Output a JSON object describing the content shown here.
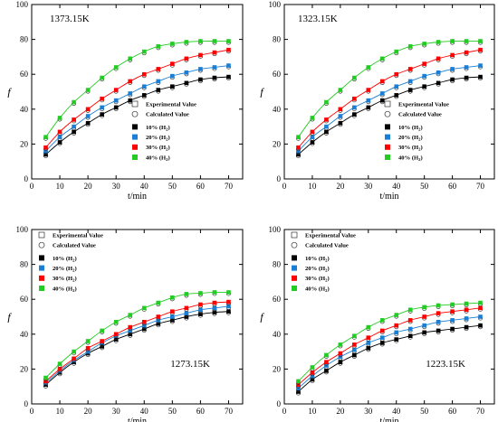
{
  "figure_title": "",
  "chart_data": [
    {
      "type": "scatter",
      "temperature_label": "1373.15K",
      "xlabel": "t/min",
      "ylabel": "f",
      "xlim": [
        0,
        75
      ],
      "ylim": [
        0,
        100
      ],
      "xticks": [
        0,
        10,
        20,
        30,
        40,
        50,
        60,
        70
      ],
      "yticks": [
        0,
        20,
        40,
        60,
        80,
        100
      ],
      "legend_position": "lower-right",
      "legend_marker_entries": [
        "Experimental Value",
        "Calculated Value"
      ],
      "x": [
        5,
        10,
        15,
        20,
        25,
        30,
        35,
        40,
        45,
        50,
        55,
        60,
        65,
        70
      ],
      "series": [
        {
          "name": "10% (H2)",
          "color": "#000000",
          "values": [
            14,
            21,
            27,
            32,
            37,
            41,
            45,
            48,
            51,
            53,
            55,
            57,
            58,
            58.5
          ]
        },
        {
          "name": "20% (H2)",
          "color": "#1a7fd4",
          "values": [
            16,
            24,
            30,
            36,
            41,
            45,
            49,
            53,
            56,
            59,
            61,
            63,
            64,
            65
          ]
        },
        {
          "name": "30% (H2)",
          "color": "#ff0000",
          "values": [
            18,
            27,
            34,
            40,
            46,
            51,
            56,
            60,
            63,
            66,
            69,
            71,
            72.5,
            74
          ]
        },
        {
          "name": "40% (H2)",
          "color": "#22cc22",
          "values": [
            24,
            35,
            44,
            51,
            58,
            64,
            69,
            73,
            76,
            77.5,
            78.5,
            79,
            79,
            79
          ]
        }
      ]
    },
    {
      "type": "scatter",
      "temperature_label": "1323.15K",
      "xlabel": "t/min",
      "ylabel": "f",
      "xlim": [
        0,
        75
      ],
      "ylim": [
        0,
        100
      ],
      "xticks": [
        0,
        10,
        20,
        30,
        40,
        50,
        60,
        70
      ],
      "yticks": [
        0,
        20,
        40,
        60,
        80,
        100
      ],
      "legend_position": "lower-right",
      "legend_marker_entries": [
        "Experimental Value",
        "Calculated Value"
      ],
      "x": [
        5,
        10,
        15,
        20,
        25,
        30,
        35,
        40,
        45,
        50,
        55,
        60,
        65,
        70
      ],
      "series": [
        {
          "name": "10% (H2)",
          "color": "#000000",
          "values": [
            14,
            21,
            27,
            32,
            37,
            41,
            45,
            48,
            51,
            53,
            55,
            57,
            58,
            58.5
          ]
        },
        {
          "name": "20% (H2)",
          "color": "#1a7fd4",
          "values": [
            16,
            24,
            30,
            36,
            41,
            45,
            49,
            53,
            56,
            59,
            61,
            63,
            64,
            65
          ]
        },
        {
          "name": "30% (H2)",
          "color": "#ff0000",
          "values": [
            18,
            27,
            34,
            40,
            46,
            51,
            56,
            60,
            63,
            66,
            69,
            71,
            72.5,
            74
          ]
        },
        {
          "name": "40% (H2)",
          "color": "#22cc22",
          "values": [
            24,
            35,
            44,
            51,
            58,
            64,
            69,
            73,
            76,
            77.5,
            78.5,
            79,
            79,
            79
          ]
        }
      ]
    },
    {
      "type": "scatter",
      "temperature_label": "1273.15K",
      "xlabel": "t/min",
      "ylabel": "f",
      "xlim": [
        0,
        75
      ],
      "ylim": [
        0,
        100
      ],
      "xticks": [
        0,
        10,
        20,
        30,
        40,
        50,
        60,
        70
      ],
      "yticks": [
        0,
        20,
        40,
        60,
        80,
        100
      ],
      "legend_position": "upper-left",
      "legend_marker_entries": [
        "Experimental Value",
        "Calculated Value"
      ],
      "x": [
        5,
        10,
        15,
        20,
        25,
        30,
        35,
        40,
        45,
        50,
        55,
        60,
        65,
        70
      ],
      "series": [
        {
          "name": "10% (H2)",
          "color": "#000000",
          "values": [
            11,
            18,
            24,
            29,
            33,
            37,
            40,
            43,
            46,
            48,
            50,
            51.5,
            52.5,
            53
          ]
        },
        {
          "name": "20% (H2)",
          "color": "#1a7fd4",
          "values": [
            12,
            19,
            25,
            30,
            35,
            39,
            42,
            45,
            48,
            50,
            52,
            54,
            55,
            56
          ]
        },
        {
          "name": "30% (H2)",
          "color": "#ff0000",
          "values": [
            13,
            20,
            26,
            32,
            36,
            40,
            44,
            47,
            50,
            53,
            55,
            57,
            58,
            58.5
          ]
        },
        {
          "name": "40% (H2)",
          "color": "#22cc22",
          "values": [
            15,
            23,
            30,
            36,
            42,
            47,
            51,
            55,
            58,
            61,
            63,
            63.5,
            64,
            64
          ]
        }
      ]
    },
    {
      "type": "scatter",
      "temperature_label": "1223.15K",
      "xlabel": "t/min",
      "ylabel": "f",
      "xlim": [
        0,
        75
      ],
      "ylim": [
        0,
        100
      ],
      "xticks": [
        0,
        10,
        20,
        30,
        40,
        50,
        60,
        70
      ],
      "yticks": [
        0,
        20,
        40,
        60,
        80,
        100
      ],
      "legend_position": "upper-left",
      "legend_marker_entries": [
        "Experimental Value",
        "Calculated Value"
      ],
      "x": [
        5,
        10,
        15,
        20,
        25,
        30,
        35,
        40,
        45,
        50,
        55,
        60,
        65,
        70
      ],
      "series": [
        {
          "name": "10% (H2)",
          "color": "#000000",
          "values": [
            7,
            14,
            19,
            24,
            28,
            32,
            35,
            37,
            39,
            41,
            42,
            43,
            44,
            45
          ]
        },
        {
          "name": "20% (H2)",
          "color": "#1a7fd4",
          "values": [
            9,
            16,
            22,
            27,
            31,
            35,
            38,
            41,
            43,
            45,
            47,
            48,
            49,
            50
          ]
        },
        {
          "name": "30% (H2)",
          "color": "#ff0000",
          "values": [
            11,
            18,
            24,
            29,
            34,
            38,
            42,
            45,
            48,
            50,
            52,
            53,
            54,
            55
          ]
        },
        {
          "name": "40% (H2)",
          "color": "#22cc22",
          "values": [
            13,
            21,
            28,
            34,
            39,
            44,
            48,
            51,
            54,
            55.5,
            56.5,
            57,
            57.5,
            58
          ]
        }
      ]
    }
  ]
}
